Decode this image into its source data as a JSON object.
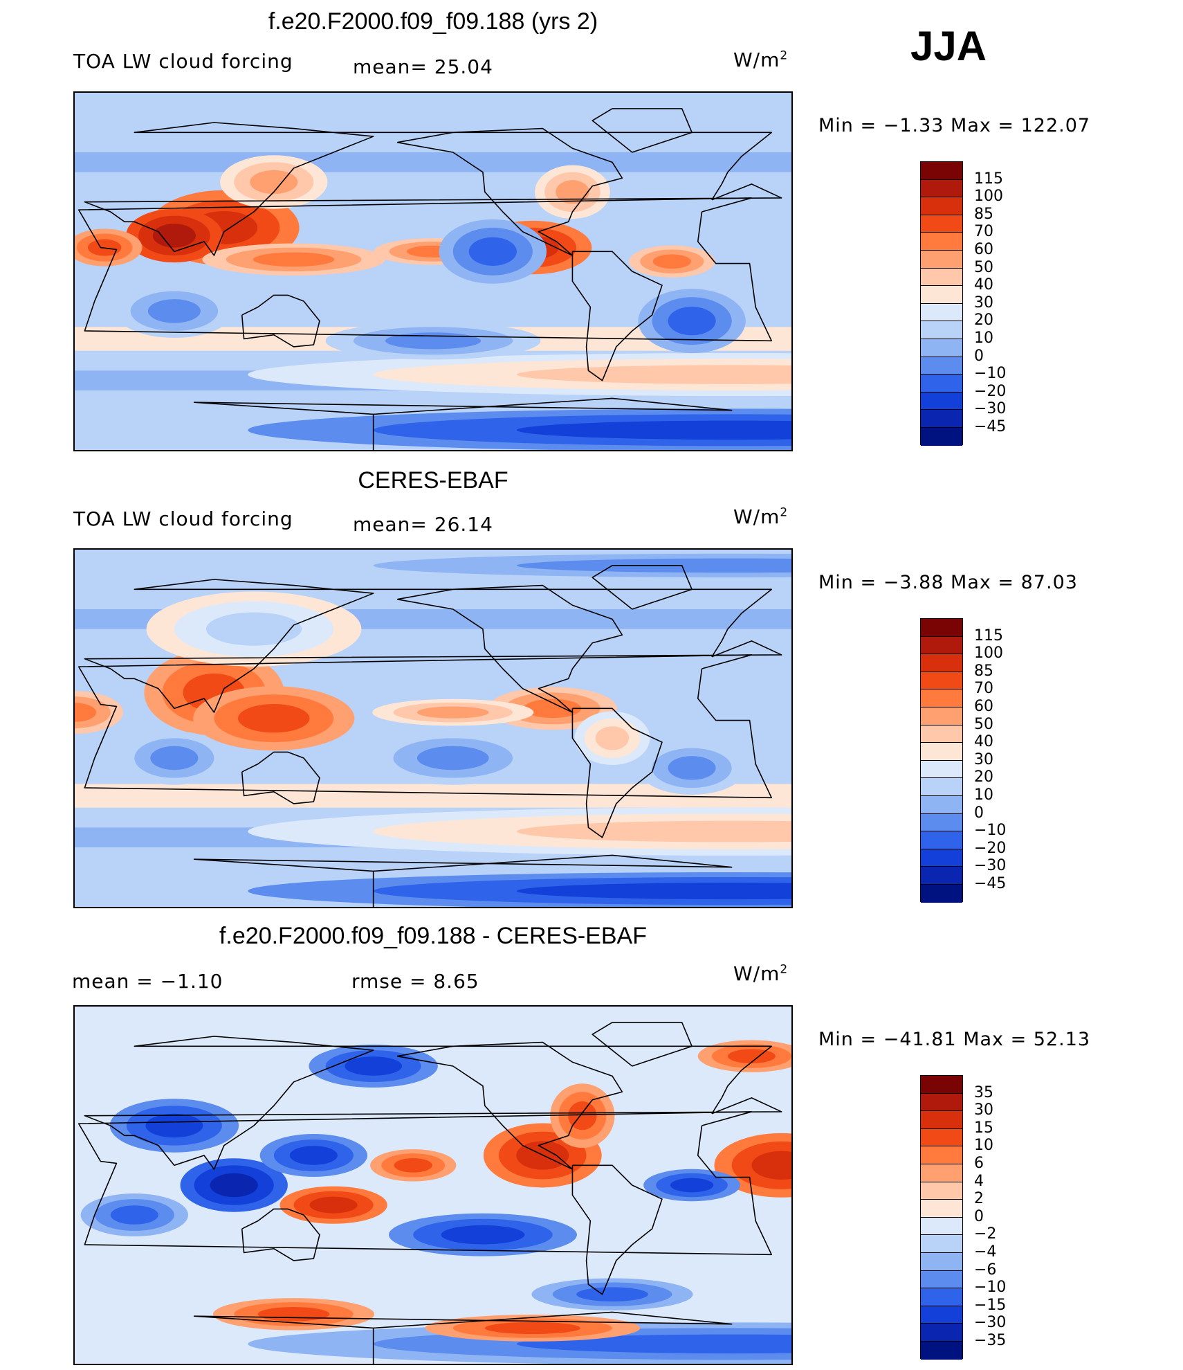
{
  "season": "JJA",
  "panels": [
    {
      "title": "f.e20.F2000.f09_f09.188 (yrs 2)",
      "left_label": "TOA LW cloud forcing",
      "center_label": "mean=   25.04",
      "units": "W/m",
      "units_sup": "2",
      "min_max": "Min  =   −1.33  Max  =  122.07",
      "colorbar_labels": [
        "115",
        "100",
        "85",
        "70",
        "60",
        "50",
        "40",
        "30",
        "20",
        "10",
        "0",
        "−10",
        "−20",
        "−30",
        "−45"
      ],
      "field": "model"
    },
    {
      "title": "CERES-EBAF",
      "left_label": "TOA LW cloud forcing",
      "center_label": "mean=   26.14",
      "units": "W/m",
      "units_sup": "2",
      "min_max": "Min  =   −3.88  Max  =    87.03",
      "colorbar_labels": [
        "115",
        "100",
        "85",
        "70",
        "60",
        "50",
        "40",
        "30",
        "20",
        "10",
        "0",
        "−10",
        "−20",
        "−30",
        "−45"
      ],
      "field": "obs"
    },
    {
      "title": "f.e20.F2000.f09_f09.188 - CERES-EBAF",
      "left_label": "mean  =    −1.10",
      "center_label": "rmse  =     8.65",
      "units": "W/m",
      "units_sup": "2",
      "min_max": "Min  = −41.81  Max  =    52.13",
      "colorbar_labels": [
        "35",
        "30",
        "15",
        "10",
        "6",
        "4",
        "2",
        "0",
        "−2",
        "−4",
        "−6",
        "−10",
        "−15",
        "−30",
        "−35"
      ],
      "field": "diff"
    }
  ],
  "colors": {
    "scale": [
      "#7a0403",
      "#b01a0c",
      "#d8300d",
      "#f14a16",
      "#ff7a3c",
      "#ffa070",
      "#ffc8aa",
      "#fde6d6",
      "#dbe9fb",
      "#b8d2f8",
      "#8fb4f4",
      "#5b8cee",
      "#2f63ea",
      "#1240d8",
      "#0a25b0",
      "#00127f"
    ]
  }
}
